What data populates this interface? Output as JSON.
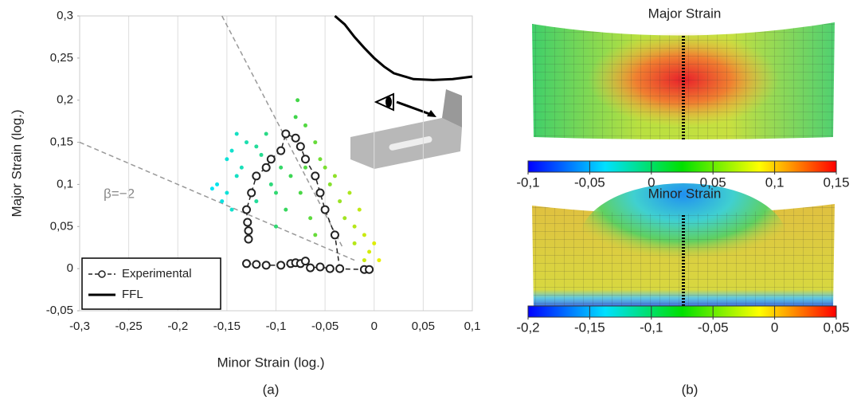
{
  "chart_data": [
    {
      "type": "scatter",
      "xlabel": "Minor Strain (log.)",
      "ylabel": "Major Strain (log.)",
      "caption": "(a)",
      "annotation": "β=−2",
      "xlim": [
        -0.3,
        0.1
      ],
      "xticks": [
        {
          "value": -0.3,
          "label": "-0,3"
        },
        {
          "value": -0.25,
          "label": "-0,25"
        },
        {
          "value": -0.2,
          "label": "-0,2"
        },
        {
          "value": -0.15,
          "label": "-0,15"
        },
        {
          "value": -0.1,
          "label": "-0,1"
        },
        {
          "value": -0.05,
          "label": "-0,05"
        },
        0,
        {
          "value": 0.05,
          "label": "0,05"
        },
        {
          "value": 0.1,
          "label": "0,1"
        }
      ],
      "ylim": [
        -0.05,
        0.3
      ],
      "yticks": [
        {
          "value": -0.05,
          "label": "-0,05"
        },
        0,
        {
          "value": 0.05,
          "label": "0,05"
        },
        {
          "value": 0.1,
          "label": "0,1"
        },
        {
          "value": 0.15,
          "label": "0,15"
        },
        {
          "value": 0.2,
          "label": "0,2"
        },
        {
          "value": 0.25,
          "label": "0,25"
        },
        {
          "value": 0.3,
          "label": "0,3"
        }
      ],
      "grid": "x",
      "legend": "lower left",
      "colormap": [
        "#00e5ff",
        "#3fd54a",
        "#f2f000"
      ],
      "color_range": [
        -0.17,
        0.01
      ],
      "cloud": {
        "x": [
          -0.165,
          -0.16,
          -0.155,
          -0.15,
          -0.145,
          -0.14,
          -0.15,
          -0.145,
          -0.14,
          -0.135,
          -0.13,
          -0.12,
          -0.115,
          -0.11,
          -0.105,
          -0.1,
          -0.095,
          -0.09,
          -0.085,
          -0.08,
          -0.078,
          -0.075,
          -0.07,
          -0.065,
          -0.06,
          -0.055,
          -0.05,
          -0.045,
          -0.04,
          -0.035,
          -0.03,
          -0.025,
          -0.02,
          -0.015,
          -0.01,
          -0.005,
          0.0,
          0.005,
          -0.01,
          -0.02,
          -0.06,
          -0.1,
          -0.12,
          -0.07
        ],
        "y": [
          0.095,
          0.1,
          0.08,
          0.09,
          0.07,
          0.11,
          0.13,
          0.14,
          0.16,
          0.12,
          0.15,
          0.145,
          0.135,
          0.16,
          0.1,
          0.09,
          0.12,
          0.07,
          0.11,
          0.18,
          0.2,
          0.09,
          0.17,
          0.06,
          0.15,
          0.13,
          0.12,
          0.1,
          0.11,
          0.08,
          0.06,
          0.09,
          0.05,
          0.07,
          0.04,
          0.02,
          0.03,
          0.01,
          0.01,
          0.03,
          0.04,
          0.05,
          0.08,
          0.12
        ]
      },
      "ref_lines": [
        {
          "x": [
            -0.3,
            -0.02
          ],
          "y": [
            0.15,
            0.01
          ]
        },
        {
          "x": [
            -0.155,
            -0.032
          ],
          "y": [
            0.3,
            0.025
          ]
        }
      ],
      "series": [
        {
          "name": "Experimental",
          "color": "#222222",
          "dash": true,
          "markers": true,
          "x": [
            -0.128,
            -0.128,
            -0.129,
            -0.13,
            -0.125,
            -0.12,
            -0.11,
            -0.105,
            -0.095,
            -0.09,
            -0.08,
            -0.075,
            -0.07,
            -0.06,
            -0.055,
            -0.05,
            -0.04,
            -0.035,
            null,
            -0.13,
            -0.12,
            -0.11,
            -0.095,
            -0.085,
            -0.08,
            -0.075,
            -0.07,
            -0.065,
            -0.055,
            -0.045,
            -0.01,
            -0.005
          ],
          "y": [
            0.035,
            0.045,
            0.055,
            0.07,
            0.09,
            0.11,
            0.12,
            0.13,
            0.14,
            0.16,
            0.155,
            0.145,
            0.13,
            0.11,
            0.09,
            0.07,
            0.04,
            0.0,
            null,
            0.006,
            0.005,
            0.004,
            0.004,
            0.006,
            0.007,
            0.006,
            0.009,
            0.001,
            0.002,
            0.0,
            -0.001,
            -0.001
          ]
        },
        {
          "name": "FFL",
          "color": "#000000",
          "dash": false,
          "markers": false,
          "x": [
            -0.04,
            -0.03,
            -0.02,
            -0.01,
            0.0,
            0.01,
            0.02,
            0.04,
            0.06,
            0.08,
            0.1
          ],
          "y": [
            0.3,
            0.29,
            0.275,
            0.262,
            0.25,
            0.24,
            0.232,
            0.225,
            0.224,
            0.225,
            0.228
          ]
        }
      ]
    },
    {
      "type": "colorbar",
      "title": "Major Strain",
      "caption": "(b)",
      "colors": [
        "#0000ff",
        "#00e0ff",
        "#00e000",
        "#ffff00",
        "#ff0000"
      ],
      "xlim": [
        -0.1,
        0.15
      ],
      "xticks": [
        {
          "value": -0.1,
          "label": "-0,1"
        },
        {
          "value": -0.05,
          "label": "-0,05"
        },
        0,
        {
          "value": 0.05,
          "label": "0,05"
        },
        {
          "value": 0.1,
          "label": "0,1"
        },
        {
          "value": 0.15,
          "label": "0,15"
        }
      ]
    },
    {
      "type": "colorbar",
      "title": "Minor Strain",
      "colors": [
        "#0000ff",
        "#00e0ff",
        "#00e000",
        "#ffff00",
        "#ff0000"
      ],
      "xlim": [
        -0.2,
        0.05
      ],
      "xticks": [
        {
          "value": -0.2,
          "label": "-0,2"
        },
        {
          "value": -0.15,
          "label": "-0,15"
        },
        {
          "value": -0.1,
          "label": "-0,1"
        },
        {
          "value": -0.05,
          "label": "-0,05"
        },
        0,
        {
          "value": 0.05,
          "label": "0,05"
        }
      ]
    }
  ]
}
